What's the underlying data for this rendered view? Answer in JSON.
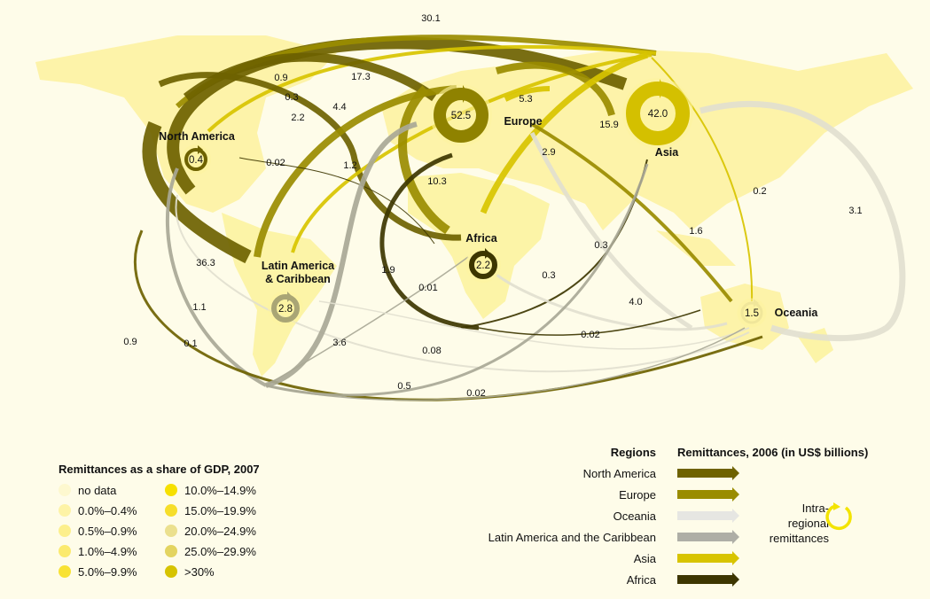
{
  "regions": {
    "north_america": {
      "label": "North America",
      "intra": "0.4",
      "color": "#6e6200"
    },
    "europe": {
      "label": "Europe",
      "intra": "52.5",
      "color": "#9a8c00"
    },
    "asia": {
      "label": "Asia",
      "intra": "42.0",
      "color": "#d8c400"
    },
    "africa": {
      "label": "Africa",
      "intra": "2.2",
      "color": "#3d3600"
    },
    "latin_america": {
      "label_line1": "Latin America",
      "label_line2": "& Caribbean",
      "intra": "2.8",
      "color": "#aaa99a"
    },
    "oceania": {
      "label": "Oceania",
      "intra": "1.5",
      "color": "#e6e4d6"
    }
  },
  "flow_labels": [
    "30.1",
    "0.9",
    "0.3",
    "2.2",
    "17.3",
    "4.4",
    "1.2",
    "0.02",
    "5.3",
    "15.9",
    "2.9",
    "10.3",
    "0.2",
    "3.1",
    "1.6",
    "0.3",
    "0.3",
    "4.0",
    "36.3",
    "1.9",
    "0.01",
    "1.1",
    "0.9",
    "0.1",
    "3.6",
    "0.08",
    "0.5",
    "0.02",
    "0.02"
  ],
  "gdp_legend": {
    "title": "Remittances as a share of GDP, 2007",
    "items": [
      {
        "label": "no data",
        "color": "#fdf8cf"
      },
      {
        "label": "0.0%–0.4%",
        "color": "#fdf3a6"
      },
      {
        "label": "0.5%–0.9%",
        "color": "#fcef8c"
      },
      {
        "label": "1.0%–4.9%",
        "color": "#fbea6e"
      },
      {
        "label": "5.0%–9.9%",
        "color": "#f8e234"
      },
      {
        "label": "10.0%–14.9%",
        "color": "#f6e000"
      },
      {
        "label": "15.0%–19.9%",
        "color": "#f6de2a"
      },
      {
        "label": "20.0%–24.9%",
        "color": "#ebe08e"
      },
      {
        "label": "25.0%–29.9%",
        "color": "#e3d460"
      },
      {
        "label": ">30%",
        "color": "#d6c300"
      }
    ]
  },
  "regions_legend": {
    "title": "Regions",
    "flows_title": "Remittances, 2006 (in US$ billions)",
    "items": [
      {
        "label": "North America",
        "color": "#6e6200"
      },
      {
        "label": "Europe",
        "color": "#9a8c00"
      },
      {
        "label": "Oceania",
        "color": "#e6e6e2"
      },
      {
        "label": "Latin America and the Caribbean",
        "color": "#aeaea6"
      },
      {
        "label": "Asia",
        "color": "#d8c400"
      },
      {
        "label": "Africa",
        "color": "#3d3600"
      }
    ],
    "intra_line1": "Intra-",
    "intra_line2": "regional",
    "intra_line3": "remittances",
    "intra_color": "#f3e400"
  }
}
